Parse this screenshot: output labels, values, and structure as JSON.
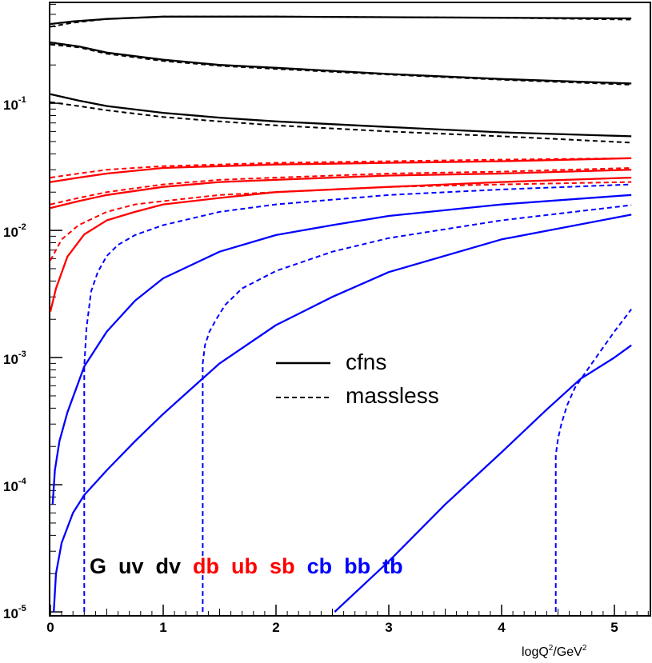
{
  "chart_data": {
    "type": "line",
    "xlabel_prefix": "logQ",
    "xlabel_sup1": "2",
    "xlabel_mid": "/GeV",
    "xlabel_sup2": "2",
    "x_range": [
      0,
      5.3
    ],
    "y_range": [
      1e-05,
      0.65
    ],
    "y_scale": "log",
    "x_ticks": [
      {
        "value": 0,
        "label": "0"
      },
      {
        "value": 1,
        "label": "1"
      },
      {
        "value": 2,
        "label": "2"
      },
      {
        "value": 3,
        "label": "3"
      },
      {
        "value": 4,
        "label": "4"
      },
      {
        "value": 5,
        "label": "5"
      }
    ],
    "y_ticks": [
      {
        "value": 0.1,
        "base": "10",
        "exp": "-1"
      },
      {
        "value": 0.01,
        "base": "10",
        "exp": "-2"
      },
      {
        "value": 0.001,
        "base": "10",
        "exp": "-3"
      },
      {
        "value": 0.0001,
        "base": "10",
        "exp": "-4"
      },
      {
        "value": 1e-05,
        "base": "10",
        "exp": "-5"
      }
    ],
    "legend": [
      {
        "label": "cfns",
        "style": "solid"
      },
      {
        "label": "massless",
        "style": "dashed"
      }
    ],
    "flavor_labels": [
      {
        "text": "G",
        "color": "#000000"
      },
      {
        "text": "uv",
        "color": "#000000"
      },
      {
        "text": "dv",
        "color": "#000000"
      },
      {
        "text": "db",
        "color": "#ff0000"
      },
      {
        "text": "ub",
        "color": "#ff0000"
      },
      {
        "text": "sb",
        "color": "#ff0000"
      },
      {
        "text": "cb",
        "color": "#0000ff"
      },
      {
        "text": "bb",
        "color": "#0000ff"
      },
      {
        "text": "tb",
        "color": "#0000ff"
      }
    ],
    "series": [
      {
        "id": "G-solid",
        "color": "#000000",
        "style": "solid",
        "x": [
          0,
          0.2,
          0.5,
          1,
          1.5,
          2,
          3,
          4,
          5.15
        ],
        "y": [
          0.42,
          0.44,
          0.46,
          0.48,
          0.48,
          0.48,
          0.475,
          0.47,
          0.465
        ]
      },
      {
        "id": "G-dashed",
        "color": "#000000",
        "style": "dashed",
        "x": [
          0,
          0.2,
          0.5,
          1,
          1.5,
          2,
          3,
          4,
          5.15
        ],
        "y": [
          0.4,
          0.43,
          0.46,
          0.48,
          0.48,
          0.48,
          0.475,
          0.47,
          0.455
        ]
      },
      {
        "id": "uv-solid",
        "color": "#000000",
        "style": "solid",
        "x": [
          0,
          0.25,
          0.5,
          1,
          1.5,
          2,
          3,
          4,
          5.15
        ],
        "y": [
          0.3,
          0.28,
          0.25,
          0.22,
          0.2,
          0.19,
          0.17,
          0.155,
          0.143
        ]
      },
      {
        "id": "uv-dashed",
        "color": "#000000",
        "style": "dashed",
        "x": [
          0,
          0.25,
          0.5,
          1,
          1.5,
          2,
          3,
          4,
          5.15
        ],
        "y": [
          0.29,
          0.275,
          0.245,
          0.215,
          0.197,
          0.186,
          0.168,
          0.153,
          0.14
        ]
      },
      {
        "id": "dv-solid",
        "color": "#000000",
        "style": "solid",
        "x": [
          0,
          0.25,
          0.5,
          1,
          1.5,
          2,
          3,
          4,
          5.15
        ],
        "y": [
          0.118,
          0.105,
          0.095,
          0.084,
          0.077,
          0.072,
          0.065,
          0.059,
          0.055
        ]
      },
      {
        "id": "dv-dashed",
        "color": "#000000",
        "style": "dashed",
        "x": [
          0,
          0.25,
          0.5,
          1,
          1.5,
          2,
          3,
          4,
          5.15
        ],
        "y": [
          0.102,
          0.095,
          0.088,
          0.078,
          0.072,
          0.067,
          0.06,
          0.055,
          0.049
        ]
      },
      {
        "id": "db-solid",
        "color": "#ff0000",
        "style": "solid",
        "x": [
          0,
          0.25,
          0.5,
          1,
          1.5,
          2,
          3,
          4,
          5.15
        ],
        "y": [
          0.024,
          0.026,
          0.028,
          0.031,
          0.032,
          0.033,
          0.034,
          0.035,
          0.037
        ]
      },
      {
        "id": "db-dashed",
        "color": "#ff0000",
        "style": "dashed",
        "x": [
          0,
          0.25,
          0.5,
          1,
          1.5,
          2,
          3,
          4,
          5.15
        ],
        "y": [
          0.026,
          0.028,
          0.03,
          0.032,
          0.033,
          0.034,
          0.035,
          0.036,
          0.037
        ]
      },
      {
        "id": "ub-solid",
        "color": "#ff0000",
        "style": "solid",
        "x": [
          0,
          0.25,
          0.5,
          1,
          1.5,
          2,
          3,
          4,
          5.15
        ],
        "y": [
          0.015,
          0.017,
          0.019,
          0.022,
          0.024,
          0.025,
          0.027,
          0.028,
          0.03
        ]
      },
      {
        "id": "ub-dashed",
        "color": "#ff0000",
        "style": "dashed",
        "x": [
          0,
          0.25,
          0.5,
          1,
          1.5,
          2,
          3,
          4,
          5.15
        ],
        "y": [
          0.016,
          0.018,
          0.02,
          0.023,
          0.025,
          0.026,
          0.028,
          0.029,
          0.031
        ]
      },
      {
        "id": "sb-solid",
        "color": "#ff0000",
        "style": "solid",
        "x": [
          0,
          0.05,
          0.15,
          0.3,
          0.5,
          0.75,
          1,
          1.5,
          2,
          3,
          4,
          5.15
        ],
        "y": [
          0.0023,
          0.0035,
          0.0062,
          0.0093,
          0.012,
          0.014,
          0.016,
          0.018,
          0.02,
          0.022,
          0.024,
          0.026
        ]
      },
      {
        "id": "sb-dashed",
        "color": "#ff0000",
        "style": "dashed",
        "x": [
          0,
          0.1,
          0.25,
          0.5,
          0.75,
          1,
          1.5,
          2,
          3,
          4,
          5.15
        ],
        "y": [
          0.0058,
          0.0085,
          0.011,
          0.014,
          0.016,
          0.017,
          0.019,
          0.02,
          0.022,
          0.023,
          0.024
        ]
      },
      {
        "id": "cb-solid",
        "color": "#0000ff",
        "style": "solid",
        "x": [
          0.02,
          0.04,
          0.08,
          0.15,
          0.3,
          0.5,
          0.75,
          1,
          1.5,
          2,
          2.5,
          3,
          4,
          5.15
        ],
        "y": [
          7e-05,
          0.00013,
          0.00022,
          0.00037,
          0.00085,
          0.0016,
          0.0028,
          0.0042,
          0.0068,
          0.0092,
          0.011,
          0.013,
          0.016,
          0.019
        ]
      },
      {
        "id": "cb-dashed",
        "color": "#0000ff",
        "style": "dashed",
        "x": [
          0.3,
          0.3,
          0.32,
          0.36,
          0.42,
          0.5,
          0.6,
          0.75,
          1,
          1.5,
          2,
          3,
          4,
          5.15
        ],
        "y": [
          1e-05,
          0.00085,
          0.0017,
          0.0033,
          0.0047,
          0.0063,
          0.0077,
          0.0092,
          0.011,
          0.014,
          0.016,
          0.019,
          0.021,
          0.023
        ]
      },
      {
        "id": "bb-solid",
        "color": "#0000ff",
        "style": "solid",
        "x": [
          0.03,
          0.05,
          0.1,
          0.2,
          0.3,
          0.5,
          0.75,
          1,
          1.25,
          1.5,
          2,
          2.5,
          3,
          4,
          5.15
        ],
        "y": [
          1e-05,
          2e-05,
          3.5e-05,
          6e-05,
          8.3e-05,
          0.00013,
          0.00022,
          0.00036,
          0.00057,
          0.0009,
          0.0018,
          0.003,
          0.0047,
          0.0085,
          0.0133
        ]
      },
      {
        "id": "bb-dashed",
        "color": "#0000ff",
        "style": "dashed",
        "x": [
          1.35,
          1.35,
          1.37,
          1.41,
          1.47,
          1.55,
          1.7,
          2,
          2.5,
          3,
          4,
          5.15
        ],
        "y": [
          1e-05,
          0.0009,
          0.00125,
          0.0016,
          0.002,
          0.0026,
          0.0035,
          0.0048,
          0.0068,
          0.0087,
          0.012,
          0.0158
        ]
      },
      {
        "id": "tb-solid",
        "color": "#0000ff",
        "style": "solid",
        "x": [
          2.52,
          3,
          3.5,
          4,
          4.4,
          4.7,
          5,
          5.15
        ],
        "y": [
          1e-05,
          2.5e-05,
          7e-05,
          0.00018,
          0.00039,
          0.00068,
          0.001,
          0.00125
        ]
      },
      {
        "id": "tb-dashed",
        "color": "#0000ff",
        "style": "dashed",
        "x": [
          4.48,
          4.48,
          4.5,
          4.53,
          4.58,
          4.65,
          4.8,
          5,
          5.15
        ],
        "y": [
          1e-05,
          0.00017,
          0.00023,
          0.0003,
          0.00042,
          0.00058,
          0.0009,
          0.0016,
          0.0024
        ]
      }
    ]
  }
}
